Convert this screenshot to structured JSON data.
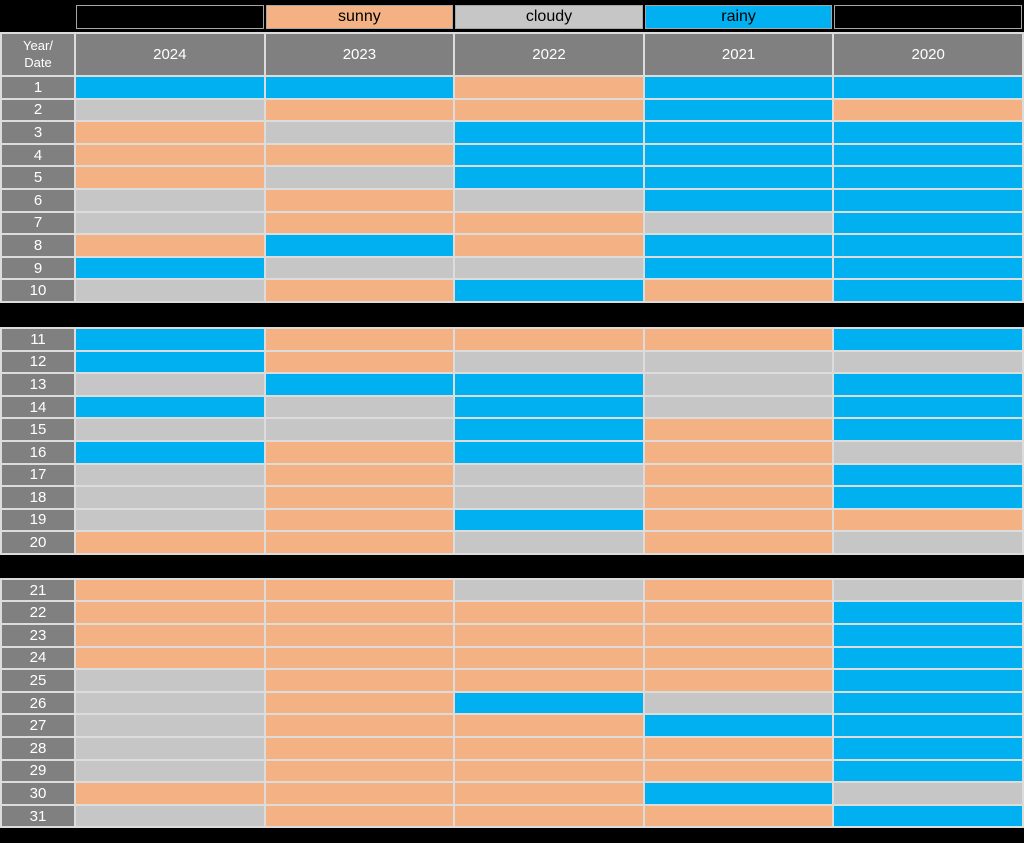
{
  "page": {
    "background": "#000000"
  },
  "header": {
    "corner_line1": "Year/",
    "corner_line2": "Date"
  },
  "weather_colors": {
    "sunny": "#F4B183",
    "cloudy": "#C6C6C6",
    "rainy": "#00B0F0"
  },
  "table_colors": {
    "header_bg": "#808080",
    "header_text": "#FFFFFF",
    "grid_line": "#DCDCDC",
    "legend_blank": "#000000"
  },
  "chart_data": {
    "type": "heatmap",
    "title": "",
    "corner_label": "Year/Date",
    "x_categories": [
      "2024",
      "2023",
      "2022",
      "2021",
      "2020"
    ],
    "y_categories": [
      "1",
      "2",
      "3",
      "4",
      "5",
      "6",
      "7",
      "8",
      "9",
      "10",
      "11",
      "12",
      "13",
      "14",
      "15",
      "16",
      "17",
      "18",
      "19",
      "20",
      "21",
      "22",
      "23",
      "24",
      "25",
      "26",
      "27",
      "28",
      "29",
      "30",
      "31"
    ],
    "legend_entries": [
      "sunny",
      "cloudy",
      "rainy"
    ],
    "legend_position": "top",
    "row_groups": [
      [
        0,
        9
      ],
      [
        10,
        19
      ],
      [
        20,
        30
      ]
    ],
    "values": [
      [
        "rainy",
        "rainy",
        "sunny",
        "rainy",
        "rainy"
      ],
      [
        "cloudy",
        "sunny",
        "sunny",
        "rainy",
        "sunny"
      ],
      [
        "sunny",
        "cloudy",
        "rainy",
        "rainy",
        "rainy"
      ],
      [
        "sunny",
        "sunny",
        "rainy",
        "rainy",
        "rainy"
      ],
      [
        "sunny",
        "cloudy",
        "rainy",
        "rainy",
        "rainy"
      ],
      [
        "cloudy",
        "sunny",
        "cloudy",
        "rainy",
        "rainy"
      ],
      [
        "cloudy",
        "sunny",
        "sunny",
        "cloudy",
        "rainy"
      ],
      [
        "sunny",
        "rainy",
        "sunny",
        "rainy",
        "rainy"
      ],
      [
        "rainy",
        "cloudy",
        "cloudy",
        "rainy",
        "rainy"
      ],
      [
        "cloudy",
        "sunny",
        "rainy",
        "sunny",
        "rainy"
      ],
      [
        "rainy",
        "sunny",
        "sunny",
        "sunny",
        "rainy"
      ],
      [
        "rainy",
        "sunny",
        "cloudy",
        "cloudy",
        "cloudy"
      ],
      [
        "cloudy",
        "rainy",
        "rainy",
        "cloudy",
        "rainy"
      ],
      [
        "rainy",
        "cloudy",
        "rainy",
        "cloudy",
        "rainy"
      ],
      [
        "cloudy",
        "cloudy",
        "rainy",
        "sunny",
        "rainy"
      ],
      [
        "rainy",
        "sunny",
        "rainy",
        "sunny",
        "cloudy"
      ],
      [
        "cloudy",
        "sunny",
        "cloudy",
        "sunny",
        "rainy"
      ],
      [
        "cloudy",
        "sunny",
        "cloudy",
        "sunny",
        "rainy"
      ],
      [
        "cloudy",
        "sunny",
        "rainy",
        "sunny",
        "sunny"
      ],
      [
        "sunny",
        "sunny",
        "cloudy",
        "sunny",
        "cloudy"
      ],
      [
        "sunny",
        "sunny",
        "cloudy",
        "sunny",
        "cloudy"
      ],
      [
        "sunny",
        "sunny",
        "sunny",
        "sunny",
        "rainy"
      ],
      [
        "sunny",
        "sunny",
        "sunny",
        "sunny",
        "rainy"
      ],
      [
        "sunny",
        "sunny",
        "sunny",
        "sunny",
        "rainy"
      ],
      [
        "cloudy",
        "sunny",
        "sunny",
        "sunny",
        "rainy"
      ],
      [
        "cloudy",
        "sunny",
        "rainy",
        "cloudy",
        "rainy"
      ],
      [
        "cloudy",
        "sunny",
        "sunny",
        "rainy",
        "rainy"
      ],
      [
        "cloudy",
        "sunny",
        "sunny",
        "sunny",
        "rainy"
      ],
      [
        "cloudy",
        "sunny",
        "sunny",
        "sunny",
        "rainy"
      ],
      [
        "sunny",
        "sunny",
        "sunny",
        "rainy",
        "cloudy"
      ],
      [
        "cloudy",
        "sunny",
        "sunny",
        "sunny",
        "rainy"
      ]
    ]
  }
}
